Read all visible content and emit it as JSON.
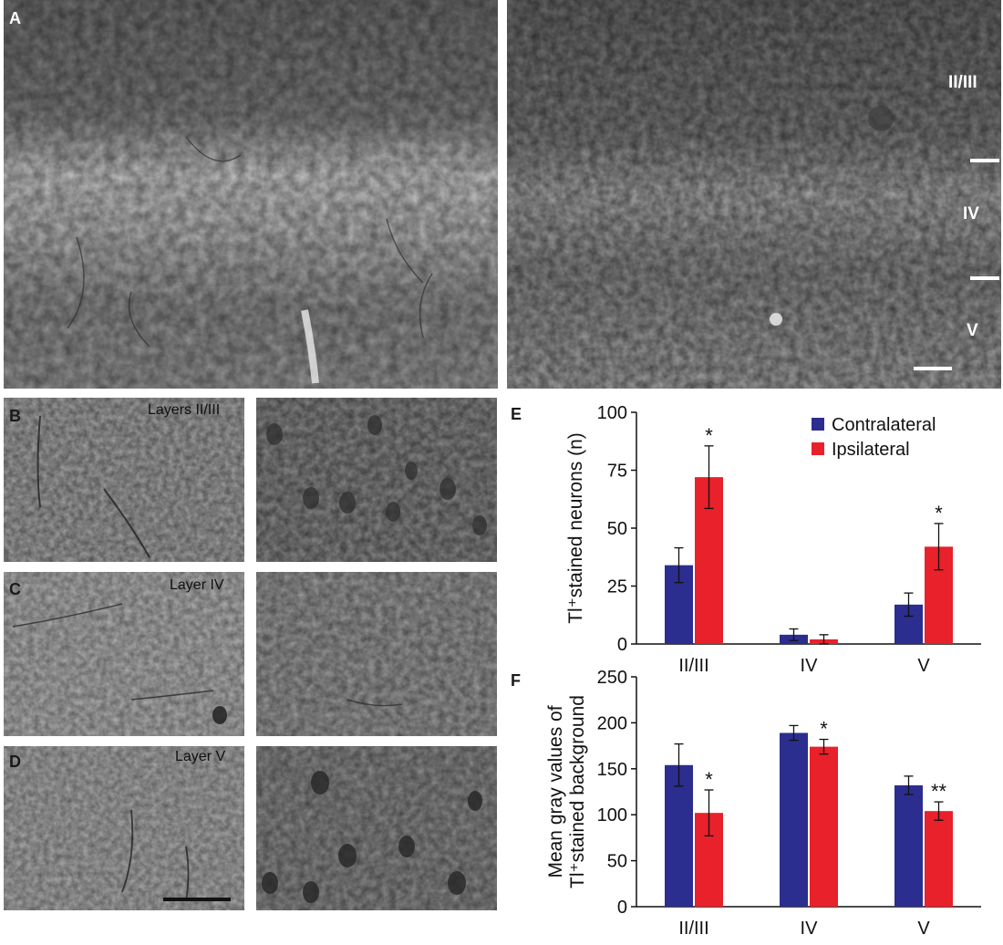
{
  "panel_labels": {
    "a": "A",
    "b": "B",
    "c": "C",
    "d": "D",
    "e": "E",
    "f": "F"
  },
  "panel_a": {
    "layer_marks": [
      "II/III",
      "IV",
      "V"
    ]
  },
  "panel_bcd": {
    "layers": [
      "Layers II/III",
      "Layer IV",
      "Layer V"
    ]
  },
  "colors": {
    "contralateral": "#2b2d8f",
    "ipsilateral": "#e8212a",
    "tissue_bg": "#8d8d8d"
  },
  "chart_data": [
    {
      "type": "bar",
      "panel": "E",
      "categories": [
        "II/III",
        "IV",
        "V"
      ],
      "series": [
        {
          "name": "Contralateral",
          "values": [
            34,
            4,
            17
          ],
          "errors": [
            7.5,
            2.5,
            5
          ],
          "color": "#2b2d8f"
        },
        {
          "name": "Ipsilateral",
          "values": [
            72,
            2,
            42
          ],
          "errors": [
            13.5,
            2,
            10
          ],
          "color": "#e8212a"
        }
      ],
      "significance": [
        {
          "category": "II/III",
          "mark": "*"
        },
        {
          "category": "IV",
          "mark": ""
        },
        {
          "category": "V",
          "mark": "*"
        }
      ],
      "ylabel": "Tl⁺stained neurons (n)",
      "ylim": [
        0,
        100
      ],
      "yticks": [
        0,
        25,
        50,
        75,
        100
      ],
      "legend": "top-right"
    },
    {
      "type": "bar",
      "panel": "F",
      "categories": [
        "II/III",
        "IV",
        "V"
      ],
      "series": [
        {
          "name": "Contralateral",
          "values": [
            154,
            189,
            132
          ],
          "errors": [
            23,
            8,
            10
          ],
          "color": "#2b2d8f"
        },
        {
          "name": "Ipsilateral",
          "values": [
            102,
            174,
            104
          ],
          "errors": [
            25,
            8,
            10
          ],
          "color": "#e8212a"
        }
      ],
      "significance": [
        {
          "category": "II/III",
          "mark": "*"
        },
        {
          "category": "IV",
          "mark": "*"
        },
        {
          "category": "V",
          "mark": "**"
        }
      ],
      "ylabel_line1": "Mean gray values of",
      "ylabel_line2": "Tl⁺stained background",
      "ylim": [
        0,
        250
      ],
      "yticks": [
        0,
        50,
        100,
        150,
        200,
        250
      ]
    }
  ]
}
